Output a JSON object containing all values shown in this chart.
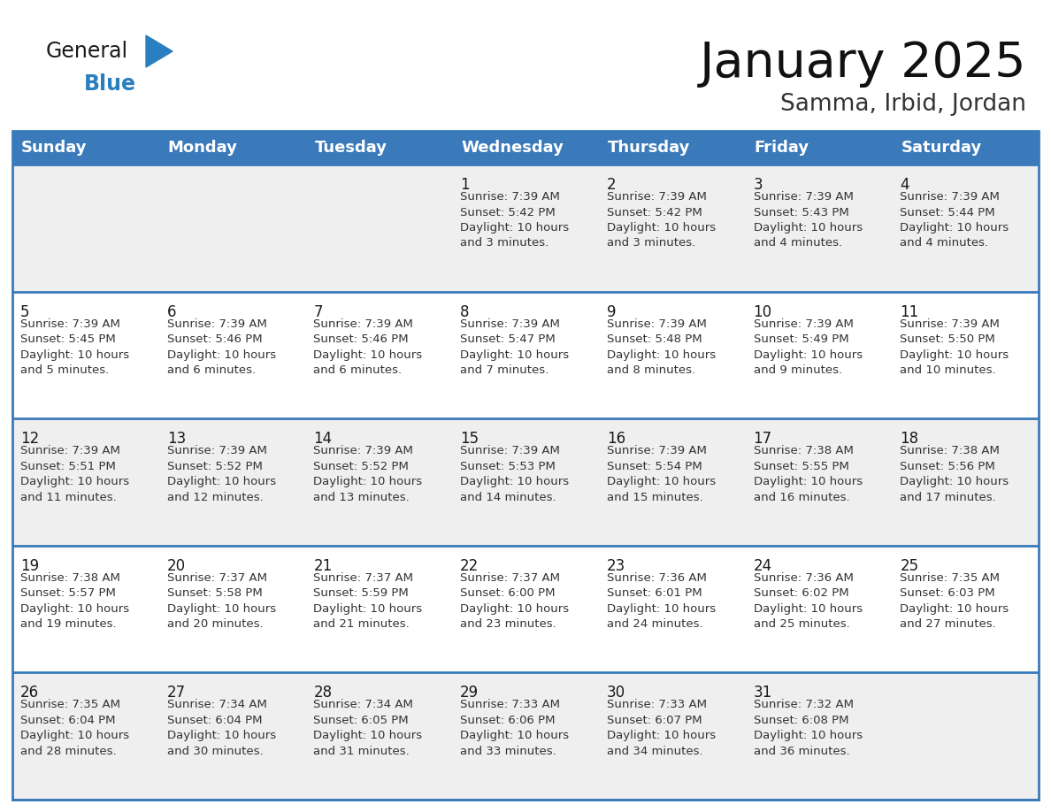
{
  "title": "January 2025",
  "subtitle": "Samma, Irbid, Jordan",
  "header_color": "#3a7aba",
  "header_text_color": "#ffffff",
  "cell_bg_row_odd": "#efefef",
  "cell_bg_row_even": "#ffffff",
  "separator_color": "#3a7aba",
  "border_color": "#3a7aba",
  "day_names": [
    "Sunday",
    "Monday",
    "Tuesday",
    "Wednesday",
    "Thursday",
    "Friday",
    "Saturday"
  ],
  "title_fontsize": 40,
  "subtitle_fontsize": 19,
  "header_fontsize": 13,
  "day_num_fontsize": 12,
  "cell_fontsize": 9.5,
  "logo_text_general": "General",
  "logo_text_blue": "Blue",
  "logo_color_general": "#1a1a1a",
  "logo_color_blue": "#2a7fc0",
  "logo_triangle_color": "#2a7fc0",
  "weeks": [
    [
      {
        "day": null,
        "text": ""
      },
      {
        "day": null,
        "text": ""
      },
      {
        "day": null,
        "text": ""
      },
      {
        "day": 1,
        "text": "Sunrise: 7:39 AM\nSunset: 5:42 PM\nDaylight: 10 hours\nand 3 minutes."
      },
      {
        "day": 2,
        "text": "Sunrise: 7:39 AM\nSunset: 5:42 PM\nDaylight: 10 hours\nand 3 minutes."
      },
      {
        "day": 3,
        "text": "Sunrise: 7:39 AM\nSunset: 5:43 PM\nDaylight: 10 hours\nand 4 minutes."
      },
      {
        "day": 4,
        "text": "Sunrise: 7:39 AM\nSunset: 5:44 PM\nDaylight: 10 hours\nand 4 minutes."
      }
    ],
    [
      {
        "day": 5,
        "text": "Sunrise: 7:39 AM\nSunset: 5:45 PM\nDaylight: 10 hours\nand 5 minutes."
      },
      {
        "day": 6,
        "text": "Sunrise: 7:39 AM\nSunset: 5:46 PM\nDaylight: 10 hours\nand 6 minutes."
      },
      {
        "day": 7,
        "text": "Sunrise: 7:39 AM\nSunset: 5:46 PM\nDaylight: 10 hours\nand 6 minutes."
      },
      {
        "day": 8,
        "text": "Sunrise: 7:39 AM\nSunset: 5:47 PM\nDaylight: 10 hours\nand 7 minutes."
      },
      {
        "day": 9,
        "text": "Sunrise: 7:39 AM\nSunset: 5:48 PM\nDaylight: 10 hours\nand 8 minutes."
      },
      {
        "day": 10,
        "text": "Sunrise: 7:39 AM\nSunset: 5:49 PM\nDaylight: 10 hours\nand 9 minutes."
      },
      {
        "day": 11,
        "text": "Sunrise: 7:39 AM\nSunset: 5:50 PM\nDaylight: 10 hours\nand 10 minutes."
      }
    ],
    [
      {
        "day": 12,
        "text": "Sunrise: 7:39 AM\nSunset: 5:51 PM\nDaylight: 10 hours\nand 11 minutes."
      },
      {
        "day": 13,
        "text": "Sunrise: 7:39 AM\nSunset: 5:52 PM\nDaylight: 10 hours\nand 12 minutes."
      },
      {
        "day": 14,
        "text": "Sunrise: 7:39 AM\nSunset: 5:52 PM\nDaylight: 10 hours\nand 13 minutes."
      },
      {
        "day": 15,
        "text": "Sunrise: 7:39 AM\nSunset: 5:53 PM\nDaylight: 10 hours\nand 14 minutes."
      },
      {
        "day": 16,
        "text": "Sunrise: 7:39 AM\nSunset: 5:54 PM\nDaylight: 10 hours\nand 15 minutes."
      },
      {
        "day": 17,
        "text": "Sunrise: 7:38 AM\nSunset: 5:55 PM\nDaylight: 10 hours\nand 16 minutes."
      },
      {
        "day": 18,
        "text": "Sunrise: 7:38 AM\nSunset: 5:56 PM\nDaylight: 10 hours\nand 17 minutes."
      }
    ],
    [
      {
        "day": 19,
        "text": "Sunrise: 7:38 AM\nSunset: 5:57 PM\nDaylight: 10 hours\nand 19 minutes."
      },
      {
        "day": 20,
        "text": "Sunrise: 7:37 AM\nSunset: 5:58 PM\nDaylight: 10 hours\nand 20 minutes."
      },
      {
        "day": 21,
        "text": "Sunrise: 7:37 AM\nSunset: 5:59 PM\nDaylight: 10 hours\nand 21 minutes."
      },
      {
        "day": 22,
        "text": "Sunrise: 7:37 AM\nSunset: 6:00 PM\nDaylight: 10 hours\nand 23 minutes."
      },
      {
        "day": 23,
        "text": "Sunrise: 7:36 AM\nSunset: 6:01 PM\nDaylight: 10 hours\nand 24 minutes."
      },
      {
        "day": 24,
        "text": "Sunrise: 7:36 AM\nSunset: 6:02 PM\nDaylight: 10 hours\nand 25 minutes."
      },
      {
        "day": 25,
        "text": "Sunrise: 7:35 AM\nSunset: 6:03 PM\nDaylight: 10 hours\nand 27 minutes."
      }
    ],
    [
      {
        "day": 26,
        "text": "Sunrise: 7:35 AM\nSunset: 6:04 PM\nDaylight: 10 hours\nand 28 minutes."
      },
      {
        "day": 27,
        "text": "Sunrise: 7:34 AM\nSunset: 6:04 PM\nDaylight: 10 hours\nand 30 minutes."
      },
      {
        "day": 28,
        "text": "Sunrise: 7:34 AM\nSunset: 6:05 PM\nDaylight: 10 hours\nand 31 minutes."
      },
      {
        "day": 29,
        "text": "Sunrise: 7:33 AM\nSunset: 6:06 PM\nDaylight: 10 hours\nand 33 minutes."
      },
      {
        "day": 30,
        "text": "Sunrise: 7:33 AM\nSunset: 6:07 PM\nDaylight: 10 hours\nand 34 minutes."
      },
      {
        "day": 31,
        "text": "Sunrise: 7:32 AM\nSunset: 6:08 PM\nDaylight: 10 hours\nand 36 minutes."
      },
      {
        "day": null,
        "text": ""
      }
    ]
  ]
}
